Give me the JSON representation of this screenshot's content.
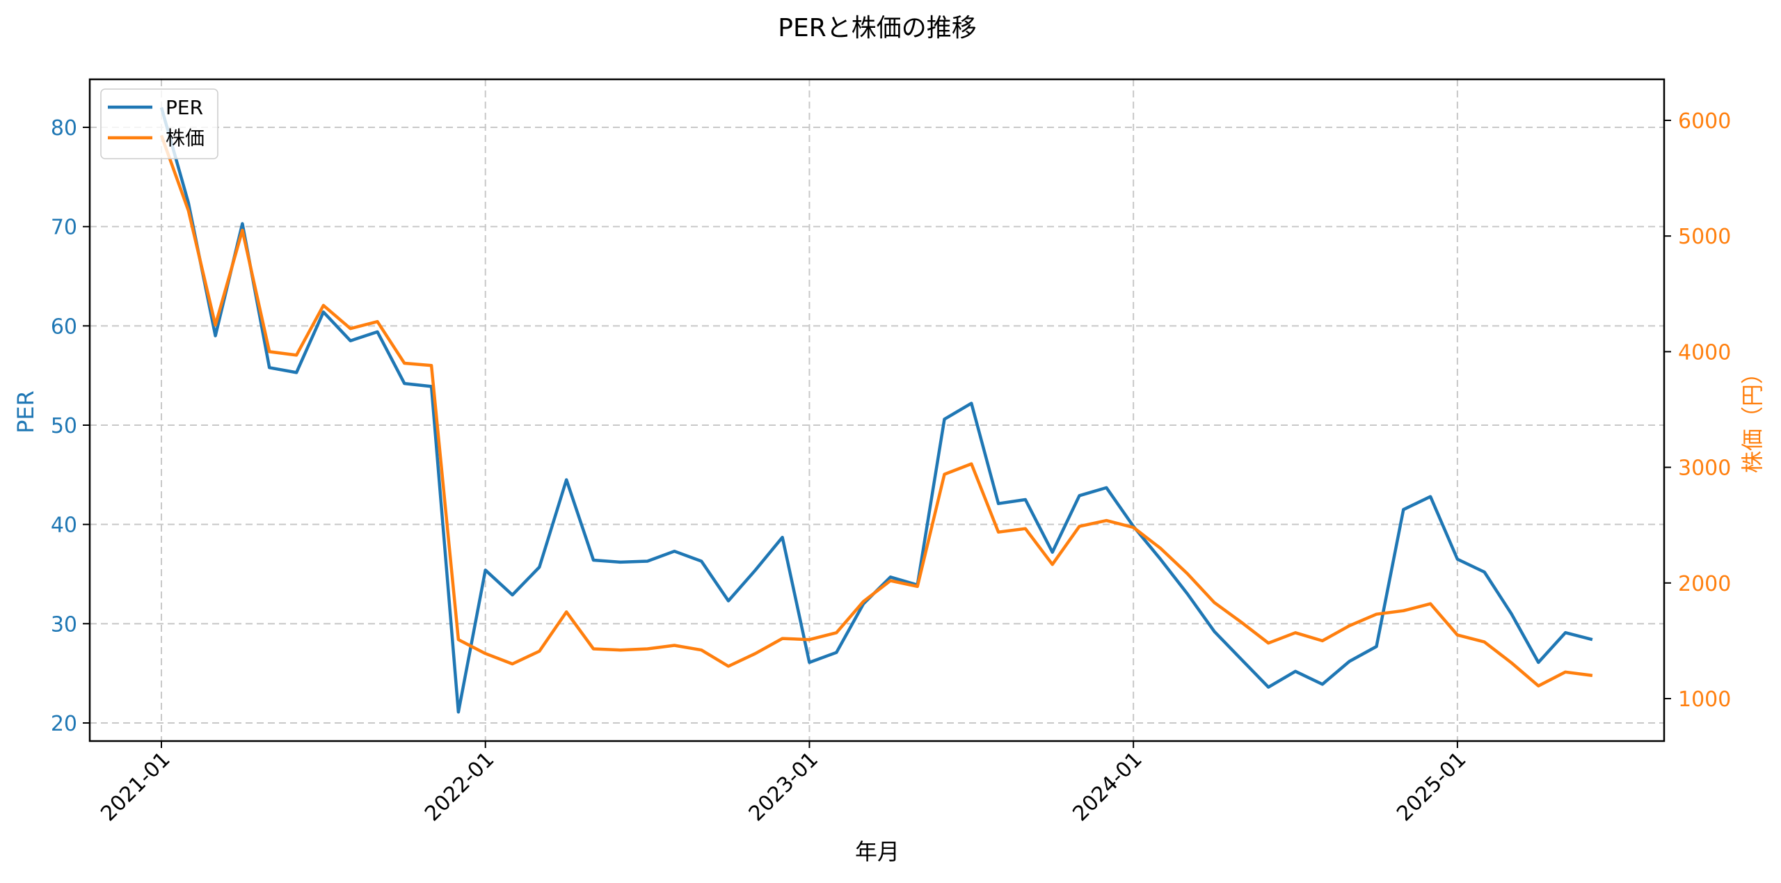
{
  "chart_data": {
    "type": "line",
    "title": "PERと株価の推移",
    "xlabel": "年月",
    "ylabel": "PER",
    "y2label": "株価（円）",
    "x_tick_labels": [
      "2021-01",
      "2022-01",
      "2023-01",
      "2024-01",
      "2025-01"
    ],
    "y_ticks": [
      20,
      30,
      40,
      50,
      60,
      70,
      80
    ],
    "y2_ticks": [
      1000,
      2000,
      3000,
      4000,
      5000,
      6000
    ],
    "ylim": [
      18,
      85
    ],
    "y2lim": [
      650,
      6350
    ],
    "grid": true,
    "legend_position": "upper left",
    "x": [
      "2021-01",
      "2021-02",
      "2021-03",
      "2021-04",
      "2021-05",
      "2021-06",
      "2021-07",
      "2021-08",
      "2021-09",
      "2021-10",
      "2021-11",
      "2021-12",
      "2022-01",
      "2022-02",
      "2022-03",
      "2022-04",
      "2022-05",
      "2022-06",
      "2022-07",
      "2022-08",
      "2022-09",
      "2022-10",
      "2022-11",
      "2022-12",
      "2023-01",
      "2023-02",
      "2023-03",
      "2023-04",
      "2023-05",
      "2023-06",
      "2023-07",
      "2023-08",
      "2023-09",
      "2023-10",
      "2023-11",
      "2023-12",
      "2024-01",
      "2024-02",
      "2024-03",
      "2024-04",
      "2024-05",
      "2024-06",
      "2024-07",
      "2024-08",
      "2024-09",
      "2024-10",
      "2024-11",
      "2024-12",
      "2025-01",
      "2025-02",
      "2025-03",
      "2025-04",
      "2025-05",
      "2025-06"
    ],
    "series": [
      {
        "name": "PER",
        "axis": "left",
        "color": "#1f77b4",
        "values": [
          82.0,
          72.4,
          59.0,
          70.3,
          55.8,
          55.3,
          61.4,
          58.5,
          59.4,
          54.2,
          53.9,
          21.1,
          35.4,
          32.9,
          35.7,
          44.5,
          36.4,
          36.2,
          36.3,
          37.3,
          36.3,
          32.3,
          35.4,
          38.7,
          26.1,
          27.1,
          32.0,
          34.7,
          33.9,
          50.6,
          52.2,
          42.1,
          42.5,
          37.2,
          42.9,
          43.7,
          39.8,
          36.5,
          33.0,
          29.2,
          26.4,
          23.6,
          25.2,
          23.9,
          26.2,
          27.7,
          41.5,
          42.8,
          36.5,
          35.2,
          31.0,
          26.1,
          29.1,
          28.4
        ]
      },
      {
        "name": "株価",
        "axis": "right",
        "color": "#ff7f0e",
        "values": [
          5870,
          5220,
          4230,
          5050,
          4000,
          3970,
          4400,
          4200,
          4260,
          3900,
          3880,
          1510,
          1390,
          1300,
          1410,
          1750,
          1430,
          1420,
          1430,
          1460,
          1420,
          1280,
          1390,
          1520,
          1510,
          1570,
          1840,
          2020,
          1970,
          2940,
          3030,
          2440,
          2470,
          2160,
          2490,
          2540,
          2480,
          2300,
          2080,
          1830,
          1660,
          1480,
          1570,
          1500,
          1630,
          1730,
          1760,
          1820,
          1550,
          1490,
          1310,
          1110,
          1230,
          1200
        ]
      }
    ]
  },
  "legend": {
    "items": [
      {
        "label": "PER",
        "color": "#1f77b4"
      },
      {
        "label": "株価",
        "color": "#ff7f0e"
      }
    ]
  },
  "colors": {
    "per": "#1f77b4",
    "price": "#ff7f0e",
    "grid": "#c8c8c8",
    "axis": "#000000"
  }
}
